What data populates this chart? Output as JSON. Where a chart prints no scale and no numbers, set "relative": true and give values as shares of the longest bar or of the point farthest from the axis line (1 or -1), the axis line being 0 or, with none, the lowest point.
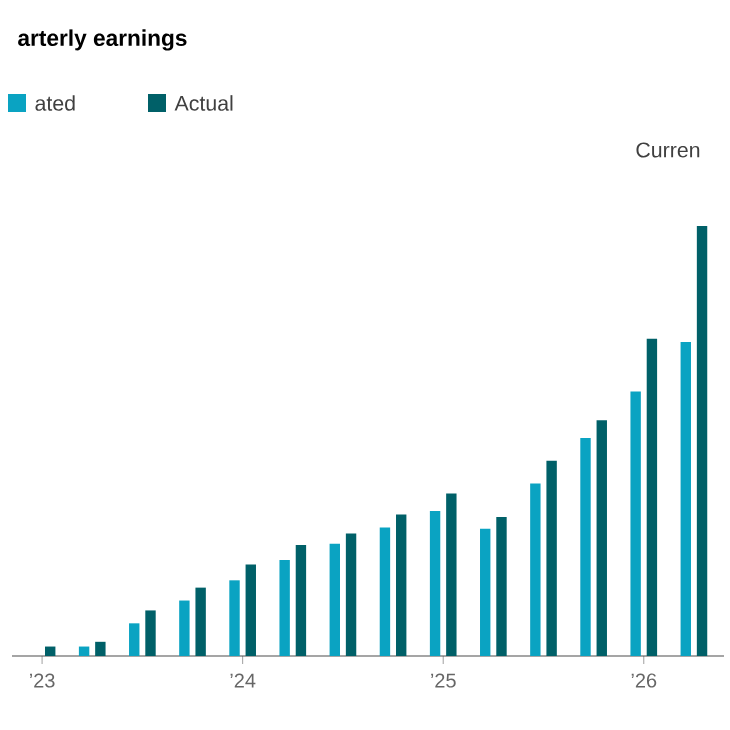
{
  "chart_data": {
    "type": "bar",
    "title": "arterly earnings",
    "relative": true,
    "legend": "top left",
    "categories": [
      "’23",
      null,
      null,
      null,
      "’24",
      null,
      null,
      null,
      "’25",
      null,
      null,
      null,
      "’26",
      null
    ],
    "series": [
      {
        "name": "ated",
        "color": "#0aa3c2",
        "values": [
          null,
          0.022,
          0.076,
          0.129,
          0.176,
          0.223,
          0.261,
          0.299,
          0.337,
          0.296,
          0.401,
          0.507,
          0.615,
          0.73
        ]
      },
      {
        "name": "Actual",
        "color": "#006068",
        "values": [
          0.022,
          0.033,
          0.106,
          0.159,
          0.213,
          0.258,
          0.285,
          0.329,
          0.378,
          0.323,
          0.454,
          0.548,
          0.738,
          1
        ]
      }
    ],
    "annotations": [
      "Curren"
    ]
  }
}
